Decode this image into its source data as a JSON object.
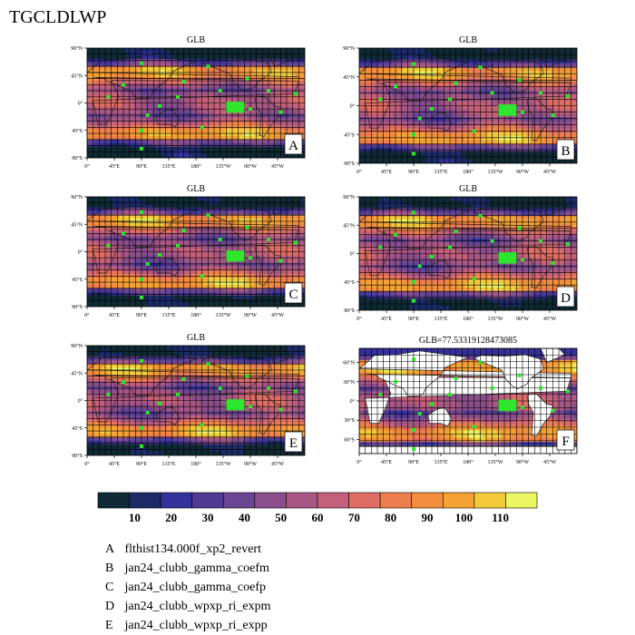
{
  "page_title": "TGCLDLWP",
  "colorbar": {
    "colors": [
      "#0f2a34",
      "#1b2b66",
      "#33319a",
      "#4f3a93",
      "#6a4592",
      "#8a4e8a",
      "#a85785",
      "#c4607a",
      "#df6d63",
      "#ee7e4d",
      "#f28e3d",
      "#f5a234",
      "#f3ca3a",
      "#eaf55f"
    ],
    "ticks": [
      "10",
      "20",
      "30",
      "40",
      "50",
      "60",
      "70",
      "80",
      "90",
      "100",
      "110"
    ]
  },
  "panels": [
    {
      "title": "GLB",
      "letter": "A"
    },
    {
      "title": "GLB",
      "letter": "B"
    },
    {
      "title": "GLB",
      "letter": "C"
    },
    {
      "title": "GLB",
      "letter": "D"
    },
    {
      "title": "GLB",
      "letter": "E"
    },
    {
      "title": "GLB=77.53319128473085",
      "letter": "F"
    }
  ],
  "axes": {
    "std_x_ticks": [
      "0°",
      "45°E",
      "90°E",
      "135°E",
      "180°",
      "135°W",
      "90°W",
      "45°W"
    ],
    "std_y_ticks": [
      "90°N",
      "45°N",
      "0°",
      "45°S",
      "90°S"
    ],
    "f_y_ticks": [
      "60°N",
      "30°N",
      "0°",
      "30°S",
      "60°S"
    ]
  },
  "legend": [
    {
      "key": "A",
      "label": "flthist134.000f_xp2_revert"
    },
    {
      "key": "B",
      "label": "jan24_clubb_gamma_coefm"
    },
    {
      "key": "C",
      "label": "jan24_clubb_gamma_coefp"
    },
    {
      "key": "D",
      "label": "jan24_clubb_wpxp_ri_expm"
    },
    {
      "key": "E",
      "label": "jan24_clubb_wpxp_ri_expp"
    }
  ],
  "chart_data": {
    "type": "heatmap",
    "variable": "TGCLDLWP",
    "map_panels": [
      {
        "letter": "A",
        "title": "GLB"
      },
      {
        "letter": "B",
        "title": "GLB"
      },
      {
        "letter": "C",
        "title": "GLB"
      },
      {
        "letter": "D",
        "title": "GLB"
      },
      {
        "letter": "E",
        "title": "GLB"
      },
      {
        "letter": "F",
        "title": "GLB=77.53319128473085"
      }
    ],
    "colorbar_levels": [
      10,
      20,
      30,
      40,
      50,
      60,
      70,
      80,
      90,
      100,
      110
    ],
    "x_ticks": [
      "0°",
      "45°E",
      "90°E",
      "135°E",
      "180°",
      "135°W",
      "90°W",
      "45°W"
    ],
    "y_ticks": [
      "90°N",
      "45°N",
      "0°",
      "45°S",
      "90°S"
    ],
    "ylim": [
      -90,
      90
    ],
    "xlim": [
      0,
      360
    ]
  }
}
